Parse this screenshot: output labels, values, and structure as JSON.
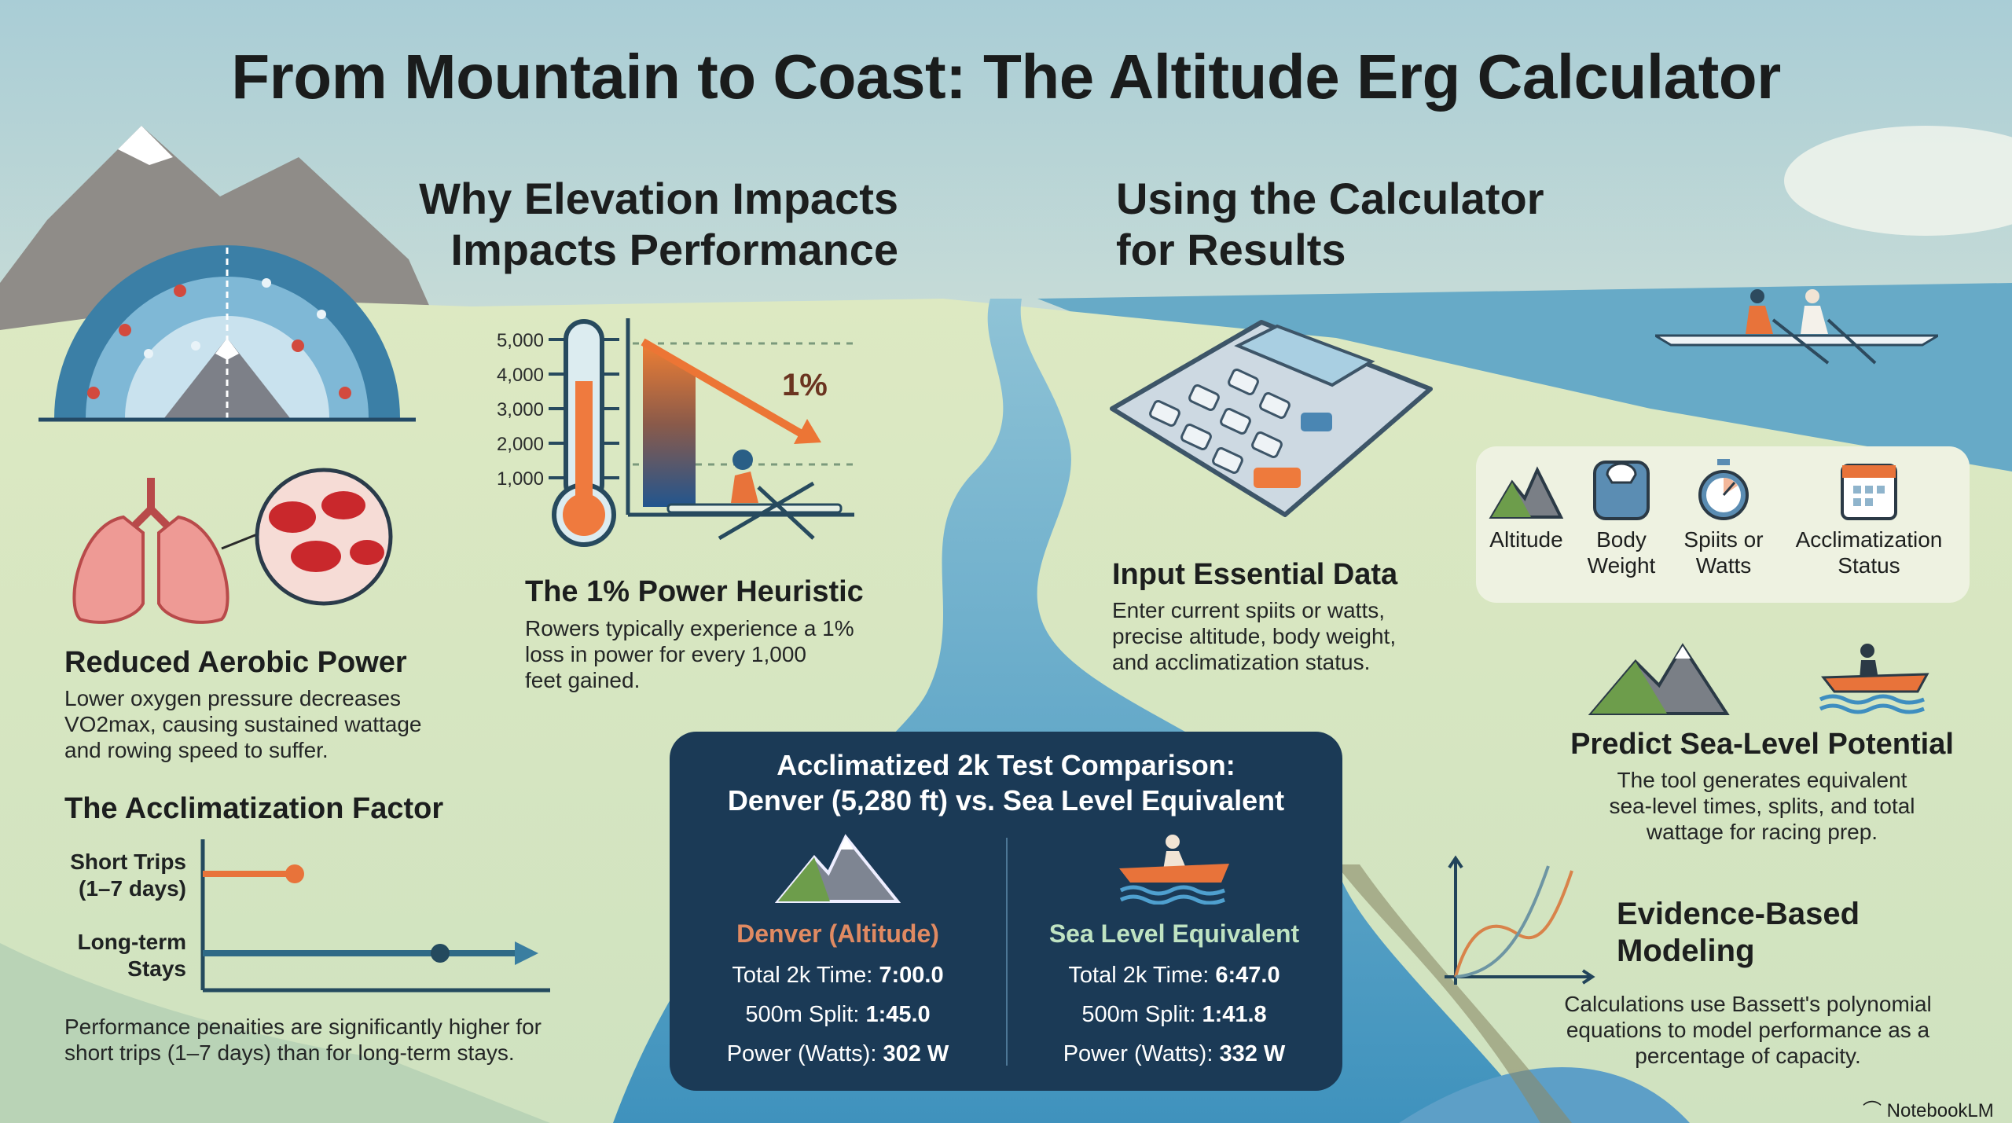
{
  "title": "From Mountain to Coast: The Altitude Erg Calculator",
  "left_heading": [
    "Why Elevation Impacts",
    "Impacts Performance"
  ],
  "right_heading": [
    "Using the Calculator",
    "for Results"
  ],
  "reduced_power": {
    "title": "Reduced Aerobic Power",
    "body": [
      "Lower oxygen pressure decreases",
      "VO2max, causing sustained wattage",
      "and rowing speed to suffer."
    ]
  },
  "acclimatization": {
    "title": "The Acclimatization Factor",
    "short_label": [
      "Short Trips",
      "(1–7 days)"
    ],
    "long_label": [
      "Long-term",
      "Stays"
    ],
    "body": [
      "Performance penaities are significantly higher for",
      "short trips (1–7 days) than for long-term stays."
    ]
  },
  "heuristic": {
    "ticks": [
      "5,000",
      "4,000",
      "3,000",
      "2,000",
      "1,000"
    ],
    "percent": "1%",
    "title": "The 1% Power Heuristic",
    "body": [
      "Rowers typically experience a 1%",
      "loss in power for every 1,000",
      "feet gained."
    ]
  },
  "input": {
    "title": "Input Essential Data",
    "body": [
      "Enter current spiits or watts,",
      "precise altitude, body weight,",
      "and acclimatization status."
    ]
  },
  "input_panel": [
    {
      "icon": "mountain-icon",
      "label": [
        "Altitude",
        ""
      ]
    },
    {
      "icon": "scale-icon",
      "label": [
        "Body",
        "Weight"
      ]
    },
    {
      "icon": "stopwatch-icon",
      "label": [
        "Spiits or",
        "Watts"
      ]
    },
    {
      "icon": "calendar-icon",
      "label": [
        "Acclimatization",
        "Status"
      ]
    }
  ],
  "predict": {
    "title": "Predict Sea-Level Potential",
    "body": [
      "The tool generates equivalent",
      "sea-level times, splits, and total",
      "wattage for racing prep."
    ]
  },
  "evidence": {
    "title": [
      "Evidence-Based",
      "Modeling"
    ],
    "body": [
      "Calculations use Bassett's polynomial",
      "equations to model performance as a",
      "percentage of capacity."
    ]
  },
  "comparison": {
    "title": [
      "Acclimatized 2k Test Comparison:",
      "Denver (5,280 ft) vs. Sea Level Equivalent"
    ],
    "denver": {
      "title": "Denver (Altitude)",
      "rows": [
        [
          "Total 2k Time: ",
          "7:00.0"
        ],
        [
          "500m Split: ",
          "1:45.0"
        ],
        [
          "Power (Watts): ",
          "302 W"
        ]
      ]
    },
    "sea": {
      "title": "Sea Level Equivalent",
      "rows": [
        [
          "Total 2k Time: ",
          "6:47.0"
        ],
        [
          "500m Split: ",
          "1:41.8"
        ],
        [
          "Power (Watts): ",
          "332 W"
        ]
      ]
    }
  },
  "brand": "NotebookLM",
  "colors": {
    "orange": "#e8733a",
    "navy": "#1b3a56",
    "teal": "#2f6a86",
    "denver": "#e08a62",
    "sea": "#bfe3c2"
  }
}
